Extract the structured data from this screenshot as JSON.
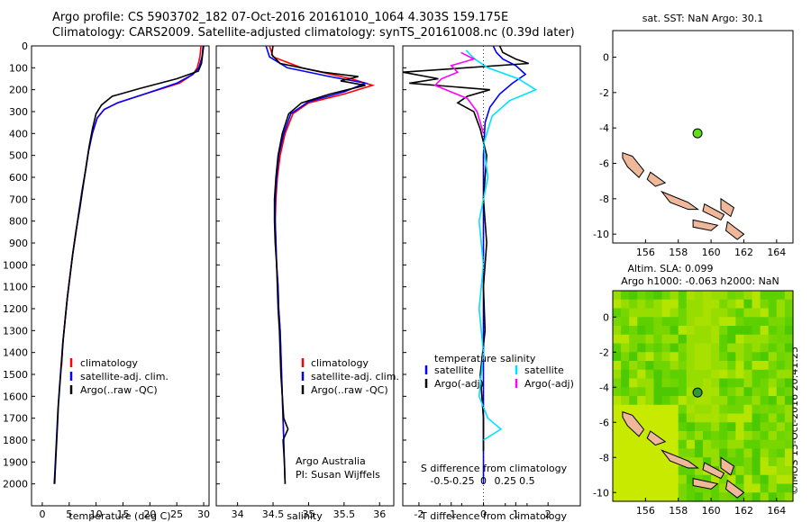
{
  "title_line1": "Argo profile: CS 5903702_182 07-Oct-2016 20161010_1064 4.303S 159.175E",
  "title_line2": "Climatology: CARS2009. Satellite-adjusted climatology: synTS_20161008.nc (0.39d later)",
  "stamp": "©IMOS 15-Oct-2016 20:41:25",
  "colors": {
    "climatology": "#ff0000",
    "satellite": "#0000ff",
    "argo": "#000000",
    "sat_salinity": "#00e0ff",
    "argo_salinity": "#ff00ff",
    "land": "#f0b89a"
  },
  "chart_data": [
    {
      "type": "line",
      "id": "temperature",
      "xlabel": "temperature (deg C)",
      "xlim": [
        -2,
        31
      ],
      "ylim": [
        2100,
        0
      ],
      "y_reversed": true,
      "xticks": [
        0,
        5,
        10,
        15,
        20,
        25,
        30
      ],
      "yticks": [
        0,
        100,
        200,
        300,
        400,
        500,
        600,
        700,
        800,
        900,
        1000,
        1100,
        1200,
        1300,
        1400,
        1500,
        1600,
        1700,
        1800,
        1900,
        2000
      ],
      "legend": [
        "climatology",
        "satellite-adj. clim.",
        "Argo(..raw -QC)"
      ],
      "series": [
        {
          "name": "climatology",
          "color": "#ff0000",
          "points": [
            [
              29.5,
              0
            ],
            [
              29.3,
              50
            ],
            [
              28.8,
              100
            ],
            [
              28,
              130
            ],
            [
              25.5,
              170
            ],
            [
              19,
              220
            ],
            [
              14,
              260
            ],
            [
              11.5,
              290
            ],
            [
              10.2,
              330
            ],
            [
              9.3,
              400
            ],
            [
              8.6,
              480
            ],
            [
              8.1,
              560
            ],
            [
              7.4,
              660
            ],
            [
              6.8,
              760
            ],
            [
              6.2,
              860
            ],
            [
              5.6,
              960
            ],
            [
              5.1,
              1060
            ],
            [
              4.6,
              1160
            ],
            [
              4.2,
              1260
            ],
            [
              3.8,
              1360
            ],
            [
              3.6,
              1460
            ]
          ]
        },
        {
          "name": "satellite-adj. clim.",
          "color": "#0000ff",
          "points": [
            [
              29.9,
              0
            ],
            [
              29.7,
              50
            ],
            [
              29.1,
              100
            ],
            [
              28,
              130
            ],
            [
              25,
              170
            ],
            [
              19,
              220
            ],
            [
              14,
              260
            ],
            [
              11.5,
              290
            ],
            [
              10.2,
              330
            ],
            [
              9.3,
              400
            ],
            [
              8.6,
              480
            ],
            [
              8.1,
              560
            ],
            [
              7.4,
              660
            ],
            [
              6.8,
              760
            ],
            [
              6.2,
              860
            ],
            [
              5.6,
              960
            ],
            [
              5.1,
              1060
            ],
            [
              4.6,
              1160
            ],
            [
              4.2,
              1260
            ],
            [
              3.8,
              1360
            ],
            [
              3.5,
              1460
            ],
            [
              3.2,
              1560
            ],
            [
              2.9,
              1660
            ],
            [
              2.7,
              1760
            ],
            [
              2.5,
              1860
            ],
            [
              2.3,
              1960
            ],
            [
              2.2,
              2000
            ]
          ]
        },
        {
          "name": "Argo(..raw -QC)",
          "color": "#000000",
          "points": [
            [
              30,
              0
            ],
            [
              29.8,
              40
            ],
            [
              29.6,
              80
            ],
            [
              29,
              115
            ],
            [
              25,
              150
            ],
            [
              18,
              195
            ],
            [
              13,
              230
            ],
            [
              11,
              270
            ],
            [
              10,
              310
            ],
            [
              9.3,
              380
            ],
            [
              8.7,
              460
            ],
            [
              8.2,
              540
            ],
            [
              7.6,
              640
            ],
            [
              7,
              740
            ],
            [
              6.3,
              840
            ],
            [
              5.7,
              940
            ],
            [
              5.2,
              1040
            ],
            [
              4.7,
              1140
            ],
            [
              4.3,
              1240
            ],
            [
              3.9,
              1340
            ],
            [
              3.6,
              1440
            ],
            [
              3.3,
              1540
            ],
            [
              3,
              1640
            ],
            [
              2.8,
              1740
            ],
            [
              2.6,
              1840
            ],
            [
              2.4,
              1940
            ],
            [
              2.3,
              2000
            ]
          ]
        }
      ]
    },
    {
      "type": "line",
      "id": "salinity",
      "xlabel": "salinity",
      "xlim": [
        33.7,
        36.2
      ],
      "ylim": [
        2100,
        0
      ],
      "y_reversed": true,
      "xticks": [
        34,
        34.5,
        35,
        35.5,
        36
      ],
      "legend": [
        "climatology",
        "satellite-adj. clim.",
        "Argo(..raw -QC)"
      ],
      "annotation": [
        "Argo Australia",
        "PI: Susan Wijffels"
      ],
      "series": [
        {
          "name": "climatology",
          "color": "#ff0000",
          "points": [
            [
              34.45,
              0
            ],
            [
              34.5,
              50
            ],
            [
              34.9,
              100
            ],
            [
              35.6,
              150
            ],
            [
              35.9,
              180
            ],
            [
              35.5,
              220
            ],
            [
              35,
              260
            ],
            [
              34.78,
              310
            ],
            [
              34.67,
              400
            ],
            [
              34.6,
              500
            ],
            [
              34.56,
              600
            ],
            [
              34.54,
              700
            ],
            [
              34.53,
              800
            ],
            [
              34.54,
              900
            ],
            [
              34.55,
              1000
            ],
            [
              34.57,
              1100
            ],
            [
              34.58,
              1200
            ],
            [
              34.6,
              1300
            ],
            [
              34.61,
              1400
            ],
            [
              34.62,
              1500
            ],
            [
              34.63,
              1600
            ],
            [
              34.64,
              1700
            ],
            [
              34.65,
              1800
            ]
          ]
        },
        {
          "name": "satellite-adj. clim.",
          "color": "#0000ff",
          "points": [
            [
              34.4,
              0
            ],
            [
              34.45,
              50
            ],
            [
              34.7,
              100
            ],
            [
              35.3,
              140
            ],
            [
              35.8,
              170
            ],
            [
              35.5,
              210
            ],
            [
              35,
              255
            ],
            [
              34.75,
              310
            ],
            [
              34.65,
              400
            ],
            [
              34.58,
              500
            ],
            [
              34.55,
              600
            ],
            [
              34.53,
              700
            ],
            [
              34.53,
              800
            ],
            [
              34.54,
              900
            ],
            [
              34.55,
              1000
            ],
            [
              34.57,
              1100
            ],
            [
              34.58,
              1200
            ],
            [
              34.6,
              1300
            ],
            [
              34.61,
              1400
            ],
            [
              34.62,
              1500
            ],
            [
              34.63,
              1600
            ],
            [
              34.64,
              1700
            ],
            [
              34.65,
              1800
            ],
            [
              34.66,
              1900
            ],
            [
              34.67,
              2000
            ]
          ]
        },
        {
          "name": "Argo(..raw -QC)",
          "color": "#000000",
          "points": [
            [
              34.5,
              0
            ],
            [
              34.48,
              40
            ],
            [
              34.6,
              80
            ],
            [
              35.2,
              120
            ],
            [
              35.7,
              140
            ],
            [
              35.45,
              160
            ],
            [
              35.8,
              180
            ],
            [
              35.3,
              220
            ],
            [
              34.9,
              260
            ],
            [
              34.72,
              310
            ],
            [
              34.63,
              400
            ],
            [
              34.57,
              500
            ],
            [
              34.54,
              600
            ],
            [
              34.52,
              700
            ],
            [
              34.52,
              800
            ],
            [
              34.53,
              900
            ],
            [
              34.55,
              1000
            ],
            [
              34.56,
              1100
            ],
            [
              34.57,
              1200
            ],
            [
              34.59,
              1300
            ],
            [
              34.6,
              1400
            ],
            [
              34.61,
              1500
            ],
            [
              34.63,
              1600
            ],
            [
              34.65,
              1700
            ],
            [
              34.71,
              1750
            ],
            [
              34.64,
              1800
            ],
            [
              34.66,
              1900
            ],
            [
              34.67,
              2000
            ]
          ]
        }
      ]
    },
    {
      "type": "line",
      "id": "difference",
      "xlabel_bottom": "T difference from climatology",
      "xlabel_top": "S difference from climatology",
      "xlim_T": [
        -2.5,
        3
      ],
      "xticks_T": [
        -2,
        -1,
        0,
        1,
        2
      ],
      "xticks_S": [
        -0.5,
        -0.25,
        0,
        0.25,
        0.5
      ],
      "xticklabels_S": [
        "-0.5",
        "-0.25",
        "0",
        "0.25",
        "0.5"
      ],
      "ylim": [
        2100,
        0
      ],
      "y_reversed": true,
      "legend_temperature_title": "temperature",
      "legend_salinity_title": "salinity",
      "legend": [
        "satellite",
        "Argo(-adj)",
        "satellite",
        "Argo(-adj)"
      ],
      "series": [
        {
          "name": "temperature satellite",
          "color": "#0000ff",
          "points": [
            [
              0.3,
              0
            ],
            [
              0.4,
              30
            ],
            [
              0.6,
              60
            ],
            [
              1,
              90
            ],
            [
              1.3,
              130
            ],
            [
              0.9,
              170
            ],
            [
              0.5,
              220
            ],
            [
              0.2,
              280
            ],
            [
              0.05,
              350
            ],
            [
              0,
              500
            ],
            [
              0,
              800
            ],
            [
              0,
              1200
            ],
            [
              0,
              1600
            ],
            [
              0,
              2000
            ]
          ]
        },
        {
          "name": "temperature Argo(-adj)",
          "color": "#000000",
          "points": [
            [
              0.5,
              0
            ],
            [
              0.6,
              30
            ],
            [
              1,
              60
            ],
            [
              1.4,
              80
            ],
            [
              -2.5,
              120
            ],
            [
              -1.4,
              150
            ],
            [
              -2.3,
              170
            ],
            [
              0.2,
              200
            ],
            [
              -0.5,
              230
            ],
            [
              -0.8,
              260
            ],
            [
              -0.3,
              300
            ],
            [
              -0.1,
              380
            ],
            [
              0.1,
              500
            ],
            [
              0,
              700
            ],
            [
              0.1,
              900
            ],
            [
              0,
              1100
            ],
            [
              0.05,
              1300
            ],
            [
              -0.1,
              1500
            ],
            [
              0,
              1700
            ],
            [
              0,
              1850
            ]
          ]
        },
        {
          "name": "salinity satellite",
          "color": "#00e0ff",
          "points": [
            [
              -0.2,
              20
            ],
            [
              -0.1,
              60
            ],
            [
              0.05,
              100
            ],
            [
              0.4,
              150
            ],
            [
              0.6,
              200
            ],
            [
              0.3,
              250
            ],
            [
              0.1,
              320
            ],
            [
              0,
              450
            ],
            [
              0.05,
              600
            ],
            [
              -0.05,
              800
            ],
            [
              0,
              1000
            ],
            [
              -0.05,
              1200
            ],
            [
              0,
              1400
            ],
            [
              -0.05,
              1600
            ],
            [
              0.05,
              1700
            ],
            [
              0.2,
              1750
            ],
            [
              0,
              1800
            ]
          ]
        },
        {
          "name": "salinity Argo(-adj)",
          "color": "#ff00ff",
          "points": [
            [
              -0.7,
              30
            ],
            [
              -0.3,
              60
            ],
            [
              -1,
              90
            ],
            [
              -0.8,
              120
            ],
            [
              -1.3,
              150
            ],
            [
              -1.5,
              180
            ],
            [
              -1,
              210
            ],
            [
              -0.5,
              240
            ],
            [
              -0.2,
              300
            ],
            [
              0,
              400
            ]
          ]
        }
      ]
    },
    {
      "type": "map",
      "id": "sst_map",
      "title": "sat. SST: NaN  Argo: 30.1",
      "xlim": [
        154,
        165
      ],
      "ylim": [
        -10.5,
        1.5
      ],
      "xticks": [
        156,
        158,
        160,
        162,
        164
      ],
      "yticks": [
        0,
        -2,
        -4,
        -6,
        -8,
        -10
      ],
      "argo_position": {
        "lon": 159.175,
        "lat": -4.303
      }
    },
    {
      "type": "heatmap",
      "id": "sla_map",
      "title_line1": "Altim. SLA: 0.099",
      "title_line2": "Argo h1000: -0.063 h2000: NaN",
      "xlim": [
        154,
        165
      ],
      "ylim": [
        -10.5,
        1.5
      ],
      "xticks": [
        156,
        158,
        160,
        162,
        164
      ],
      "yticks": [
        0,
        -2,
        -4,
        -6,
        -8,
        -10
      ],
      "argo_position": {
        "lon": 159.175,
        "lat": -4.303
      }
    }
  ]
}
